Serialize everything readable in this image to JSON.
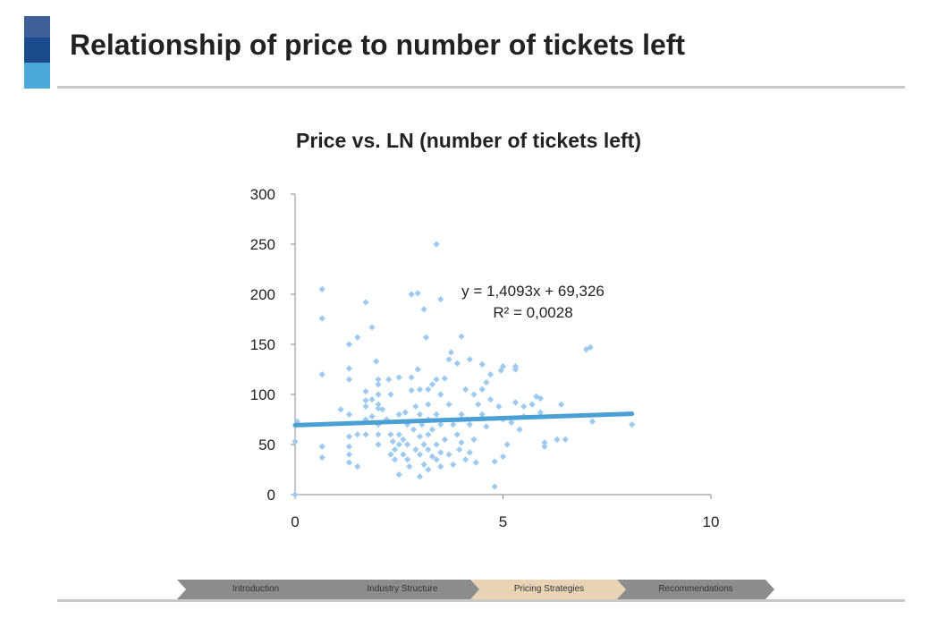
{
  "slide": {
    "title": "Relationship of price to number of tickets left"
  },
  "nav": {
    "steps": [
      {
        "label": "Introduction",
        "active": false
      },
      {
        "label": "Industry Structure",
        "active": false
      },
      {
        "label": "Pricing Strategies",
        "active": true
      },
      {
        "label": "Recommendations",
        "active": false
      }
    ]
  },
  "colors": {
    "points": "#9dcaf0",
    "trendline": "#4a9fd4",
    "active_step": "#e8d4b4",
    "inactive_step": "#8c8c8c"
  },
  "chart_data": {
    "type": "scatter",
    "title": "Price vs. LN (number of tickets left)",
    "xlabel": "",
    "ylabel": "",
    "xlim": [
      0,
      10
    ],
    "ylim": [
      0,
      300
    ],
    "x_ticks": [
      "0",
      "5",
      "10"
    ],
    "y_ticks": [
      "0",
      "50",
      "100",
      "150",
      "200",
      "250",
      "300"
    ],
    "grid": false,
    "legend": "none",
    "trendline": {
      "slope": 1.4093,
      "intercept": 69.326,
      "x_range": [
        0,
        8.1
      ]
    },
    "equation": "y = 1,4093x + 69,326",
    "r_squared": "R² = 0,0028",
    "series": [
      {
        "points": [
          [
            0,
            0
          ],
          [
            0,
            53
          ],
          [
            0.05,
            73
          ],
          [
            0.65,
            205
          ],
          [
            0.65,
            176
          ],
          [
            0.65,
            120
          ],
          [
            0.65,
            48
          ],
          [
            0.65,
            37
          ],
          [
            1.1,
            85
          ],
          [
            1.3,
            150
          ],
          [
            1.3,
            126
          ],
          [
            1.3,
            115
          ],
          [
            1.3,
            80
          ],
          [
            1.3,
            58
          ],
          [
            1.3,
            48
          ],
          [
            1.3,
            40
          ],
          [
            1.3,
            32
          ],
          [
            1.5,
            157
          ],
          [
            1.5,
            60
          ],
          [
            1.5,
            28
          ],
          [
            1.7,
            192
          ],
          [
            1.7,
            103
          ],
          [
            1.7,
            94
          ],
          [
            1.7,
            88
          ],
          [
            1.7,
            75
          ],
          [
            1.7,
            60
          ],
          [
            1.85,
            167
          ],
          [
            1.85,
            95
          ],
          [
            1.85,
            78
          ],
          [
            1.95,
            133
          ],
          [
            2.0,
            115
          ],
          [
            2.0,
            110
          ],
          [
            2.0,
            100
          ],
          [
            2.0,
            90
          ],
          [
            2.0,
            86
          ],
          [
            2.0,
            70
          ],
          [
            2.0,
            60
          ],
          [
            2.0,
            50
          ],
          [
            2.1,
            85
          ],
          [
            2.2,
            75
          ],
          [
            2.25,
            115
          ],
          [
            2.3,
            100
          ],
          [
            2.3,
            60
          ],
          [
            2.3,
            40
          ],
          [
            2.35,
            53
          ],
          [
            2.4,
            45
          ],
          [
            2.4,
            35
          ],
          [
            2.5,
            117
          ],
          [
            2.5,
            80
          ],
          [
            2.5,
            60
          ],
          [
            2.5,
            50
          ],
          [
            2.5,
            20
          ],
          [
            2.6,
            55
          ],
          [
            2.6,
            40
          ],
          [
            2.65,
            82
          ],
          [
            2.7,
            70
          ],
          [
            2.7,
            50
          ],
          [
            2.7,
            35
          ],
          [
            2.75,
            28
          ],
          [
            2.8,
            200
          ],
          [
            2.8,
            117
          ],
          [
            2.8,
            104
          ],
          [
            2.85,
            65
          ],
          [
            2.9,
            88
          ],
          [
            2.9,
            45
          ],
          [
            2.95,
            201
          ],
          [
            2.95,
            125
          ],
          [
            3.0,
            105
          ],
          [
            3.0,
            80
          ],
          [
            3.0,
            58
          ],
          [
            3.0,
            40
          ],
          [
            3.0,
            18
          ],
          [
            3.05,
            70
          ],
          [
            3.1,
            185
          ],
          [
            3.1,
            50
          ],
          [
            3.1,
            30
          ],
          [
            3.15,
            157
          ],
          [
            3.2,
            105
          ],
          [
            3.2,
            90
          ],
          [
            3.2,
            75
          ],
          [
            3.2,
            60
          ],
          [
            3.2,
            45
          ],
          [
            3.2,
            25
          ],
          [
            3.3,
            110
          ],
          [
            3.3,
            65
          ],
          [
            3.3,
            38
          ],
          [
            3.4,
            250
          ],
          [
            3.4,
            115
          ],
          [
            3.4,
            80
          ],
          [
            3.4,
            50
          ],
          [
            3.4,
            35
          ],
          [
            3.5,
            195
          ],
          [
            3.5,
            100
          ],
          [
            3.5,
            70
          ],
          [
            3.5,
            42
          ],
          [
            3.5,
            28
          ],
          [
            3.6,
            116
          ],
          [
            3.6,
            55
          ],
          [
            3.7,
            135
          ],
          [
            3.7,
            90
          ],
          [
            3.7,
            40
          ],
          [
            3.75,
            142
          ],
          [
            3.8,
            70
          ],
          [
            3.8,
            30
          ],
          [
            3.9,
            131
          ],
          [
            3.9,
            60
          ],
          [
            3.95,
            45
          ],
          [
            4.0,
            158
          ],
          [
            4.0,
            80
          ],
          [
            4.0,
            52
          ],
          [
            4.1,
            105
          ],
          [
            4.1,
            35
          ],
          [
            4.2,
            135
          ],
          [
            4.2,
            70
          ],
          [
            4.2,
            42
          ],
          [
            4.3,
            100
          ],
          [
            4.3,
            55
          ],
          [
            4.35,
            32
          ],
          [
            4.4,
            90
          ],
          [
            4.5,
            130
          ],
          [
            4.5,
            105
          ],
          [
            4.5,
            80
          ],
          [
            4.6,
            112
          ],
          [
            4.6,
            68
          ],
          [
            4.7,
            120
          ],
          [
            4.7,
            95
          ],
          [
            4.8,
            8
          ],
          [
            4.8,
            33
          ],
          [
            4.9,
            88
          ],
          [
            4.95,
            124
          ],
          [
            5.0,
            128
          ],
          [
            5.0,
            75
          ],
          [
            5.0,
            38
          ],
          [
            5.1,
            50
          ],
          [
            5.2,
            72
          ],
          [
            5.3,
            128
          ],
          [
            5.3,
            125
          ],
          [
            5.3,
            92
          ],
          [
            5.4,
            65
          ],
          [
            5.5,
            88
          ],
          [
            5.5,
            78
          ],
          [
            5.7,
            90
          ],
          [
            5.8,
            98
          ],
          [
            5.9,
            96
          ],
          [
            5.9,
            82
          ],
          [
            6.0,
            52
          ],
          [
            6.0,
            48
          ],
          [
            6.3,
            55
          ],
          [
            6.4,
            90
          ],
          [
            6.5,
            55
          ],
          [
            7.0,
            145
          ],
          [
            7.1,
            147
          ],
          [
            7.15,
            73
          ],
          [
            8.1,
            70
          ]
        ]
      }
    ]
  }
}
